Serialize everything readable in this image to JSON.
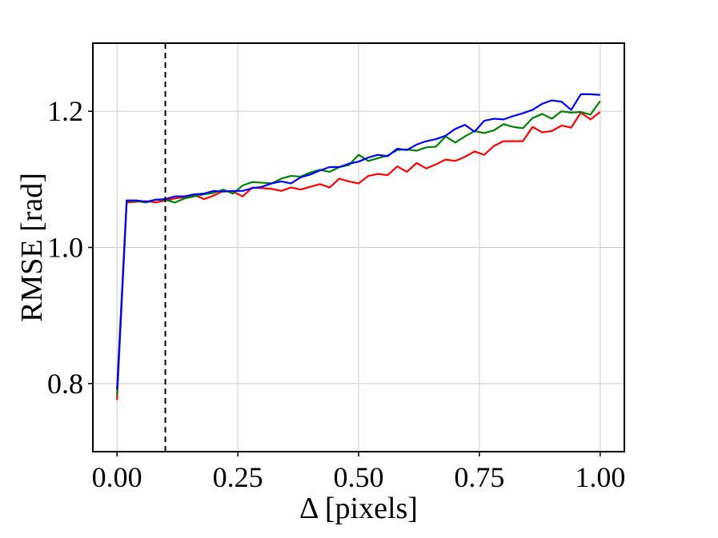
{
  "chart_data": {
    "type": "line",
    "title": "",
    "xlabel": "Δ [pixels]",
    "ylabel": "RMSE [rad]",
    "xlim": [
      -0.05,
      1.05
    ],
    "ylim": [
      0.7,
      1.3
    ],
    "xticks": [
      0.0,
      0.25,
      0.5,
      0.75,
      1.0
    ],
    "xtick_labels": [
      "0.00",
      "0.25",
      "0.50",
      "0.75",
      "1.00"
    ],
    "yticks": [
      0.8,
      1.0,
      1.2
    ],
    "ytick_labels": [
      "0.8",
      "1.0",
      "1.2"
    ],
    "grid": true,
    "legend": "none",
    "vline": {
      "x": 0.1,
      "style": "dashed",
      "color": "#000000"
    },
    "x": [
      0.0,
      0.02,
      0.04,
      0.06,
      0.08,
      0.1,
      0.12,
      0.14,
      0.16,
      0.18,
      0.2,
      0.22,
      0.24,
      0.26,
      0.28,
      0.3,
      0.32,
      0.34,
      0.36,
      0.38,
      0.4,
      0.42,
      0.44,
      0.46,
      0.48,
      0.5,
      0.52,
      0.54,
      0.56,
      0.58,
      0.6,
      0.62,
      0.64,
      0.66,
      0.68,
      0.7,
      0.72,
      0.74,
      0.76,
      0.78,
      0.8,
      0.82,
      0.84,
      0.86,
      0.88,
      0.9,
      0.92,
      0.94,
      0.96,
      0.98,
      1.0
    ],
    "series": [
      {
        "color": "#ff0000",
        "values": [
          0.776,
          1.066,
          1.067,
          1.068,
          1.066,
          1.069,
          1.072,
          1.074,
          1.077,
          1.071,
          1.076,
          1.083,
          1.082,
          1.075,
          1.088,
          1.087,
          1.086,
          1.083,
          1.088,
          1.085,
          1.089,
          1.093,
          1.088,
          1.101,
          1.097,
          1.094,
          1.105,
          1.108,
          1.106,
          1.119,
          1.111,
          1.124,
          1.116,
          1.122,
          1.129,
          1.127,
          1.133,
          1.141,
          1.136,
          1.149,
          1.156,
          1.156,
          1.156,
          1.177,
          1.169,
          1.171,
          1.179,
          1.176,
          1.198,
          1.188,
          1.199
        ]
      },
      {
        "color": "#008000",
        "values": [
          0.783,
          1.068,
          1.068,
          1.066,
          1.07,
          1.07,
          1.066,
          1.072,
          1.075,
          1.078,
          1.08,
          1.085,
          1.079,
          1.091,
          1.096,
          1.095,
          1.094,
          1.101,
          1.105,
          1.104,
          1.11,
          1.114,
          1.111,
          1.118,
          1.121,
          1.136,
          1.127,
          1.131,
          1.135,
          1.143,
          1.144,
          1.142,
          1.147,
          1.148,
          1.163,
          1.154,
          1.163,
          1.171,
          1.168,
          1.172,
          1.181,
          1.177,
          1.175,
          1.19,
          1.196,
          1.189,
          1.2,
          1.198,
          1.199,
          1.195,
          1.215
        ]
      },
      {
        "color": "#0000ff",
        "values": [
          0.791,
          1.069,
          1.069,
          1.067,
          1.07,
          1.071,
          1.075,
          1.075,
          1.078,
          1.079,
          1.083,
          1.082,
          1.083,
          1.083,
          1.087,
          1.089,
          1.094,
          1.097,
          1.094,
          1.103,
          1.107,
          1.113,
          1.118,
          1.118,
          1.123,
          1.126,
          1.132,
          1.136,
          1.134,
          1.145,
          1.143,
          1.151,
          1.156,
          1.159,
          1.164,
          1.174,
          1.18,
          1.17,
          1.186,
          1.189,
          1.188,
          1.193,
          1.197,
          1.202,
          1.211,
          1.216,
          1.214,
          1.202,
          1.225,
          1.225,
          1.224
        ]
      }
    ]
  }
}
